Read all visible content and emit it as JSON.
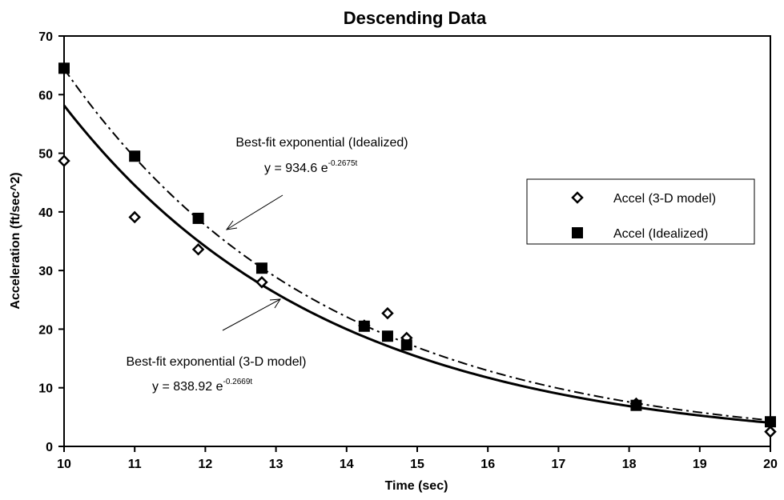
{
  "chart_data": {
    "type": "scatter",
    "title": "Descending Data",
    "xlabel": "Time (sec)",
    "ylabel": "Acceleration (ft/sec^2)",
    "xlim": [
      10,
      20
    ],
    "ylim": [
      0,
      70
    ],
    "x_ticks": [
      10,
      11,
      12,
      13,
      14,
      15,
      16,
      17,
      18,
      19,
      20
    ],
    "y_ticks": [
      0,
      10,
      20,
      30,
      40,
      50,
      60,
      70
    ],
    "grid": false,
    "legend_position": "right",
    "series": [
      {
        "name": "Accel (3-D model)",
        "marker": "open-diamond",
        "points": [
          {
            "x": 10.0,
            "y": 48.7
          },
          {
            "x": 11.0,
            "y": 39.1
          },
          {
            "x": 11.9,
            "y": 33.6
          },
          {
            "x": 12.8,
            "y": 28.0
          },
          {
            "x": 14.25,
            "y": 20.6
          },
          {
            "x": 14.58,
            "y": 22.7
          },
          {
            "x": 14.85,
            "y": 18.5
          },
          {
            "x": 18.1,
            "y": 7.3
          },
          {
            "x": 20.0,
            "y": 2.5
          }
        ]
      },
      {
        "name": "Accel (Idealized)",
        "marker": "filled-square",
        "points": [
          {
            "x": 10.0,
            "y": 64.5
          },
          {
            "x": 11.0,
            "y": 49.5
          },
          {
            "x": 11.9,
            "y": 38.9
          },
          {
            "x": 12.8,
            "y": 30.4
          },
          {
            "x": 14.25,
            "y": 20.5
          },
          {
            "x": 14.58,
            "y": 18.8
          },
          {
            "x": 14.85,
            "y": 17.3
          },
          {
            "x": 18.1,
            "y": 7.0
          },
          {
            "x": 20.0,
            "y": 4.2
          }
        ]
      }
    ],
    "fits": [
      {
        "name": "Best-fit exponential (3-D model)",
        "equation_prefix": "y = 838.92 e",
        "exponent_text": "-0.2669t",
        "a": 838.92,
        "b": -0.2669,
        "style": "solid"
      },
      {
        "name": "Best-fit exponential (Idealized)",
        "equation_prefix": "y = 934.6 e",
        "exponent_text": "-0.2675t",
        "a": 934.6,
        "b": -0.2675,
        "style": "dash-dot"
      }
    ]
  }
}
